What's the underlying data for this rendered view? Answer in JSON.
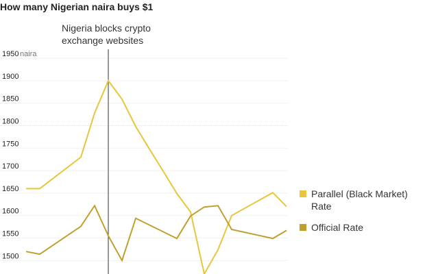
{
  "chart_data": {
    "type": "line",
    "title": "How many Nigerian naira buys $1",
    "y_unit": "naira",
    "annotation": {
      "x": 6,
      "lines": [
        "Nigeria blocks crypto",
        "exchange websites"
      ]
    },
    "xlim": [
      0,
      19
    ],
    "ylim": [
      1470,
      1950
    ],
    "yticks": [
      1500,
      1550,
      1600,
      1650,
      1700,
      1750,
      1800,
      1850,
      1900,
      1950
    ],
    "grid": true,
    "legend": "right",
    "series": [
      {
        "name": [
          "Parallel (Black Market)",
          "Rate"
        ],
        "color": "#e8c53a",
        "x": [
          0,
          1,
          4,
          5,
          6,
          7,
          8,
          9,
          10,
          11,
          12,
          13,
          14,
          15,
          18,
          19
        ],
        "values": [
          1660,
          1660,
          1730,
          1828,
          1900,
          1859,
          1798,
          1748,
          1699,
          1649,
          1608,
          1470,
          1524,
          1600,
          1651,
          1620
        ]
      },
      {
        "name": [
          "Official Rate"
        ],
        "color": "#bf9f2e",
        "x": [
          0,
          1,
          4,
          5,
          6,
          7,
          8,
          11,
          12,
          13,
          14,
          15,
          18,
          19
        ],
        "values": [
          1520,
          1514,
          1576,
          1622,
          1555,
          1500,
          1594,
          1549,
          1599,
          1619,
          1622,
          1569,
          1549,
          1567
        ]
      }
    ]
  }
}
